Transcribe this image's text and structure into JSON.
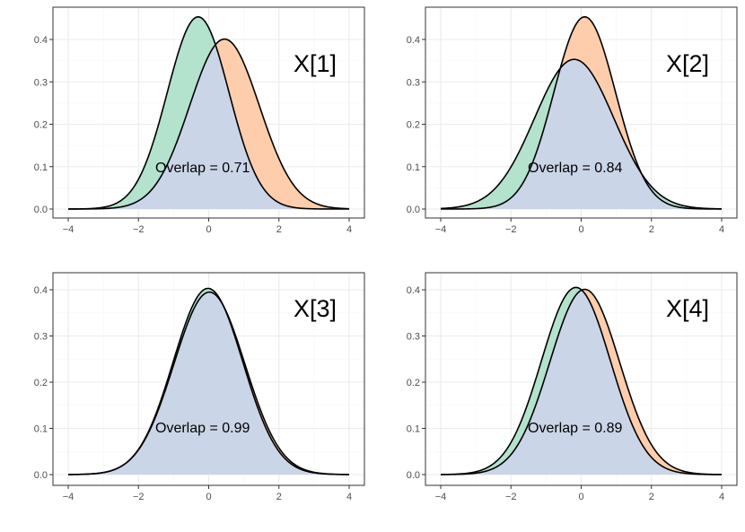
{
  "colors": {
    "group_a_fill": "#b3e2cd",
    "group_b_fill": "#fdcdac",
    "overlap_fill": "#cbd5e8",
    "curve_stroke": "#000000",
    "grid_major": "#ebebeb",
    "grid_minor": "#f5f5f5",
    "panel_border": "#333333"
  },
  "chart_data": [
    {
      "type": "area",
      "panel_label": "X[1]",
      "annotation": "Overlap = 0.71",
      "xlim": [
        -4,
        4
      ],
      "ylim": [
        0,
        0.45
      ],
      "x_ticks": [
        -4,
        -2,
        0,
        2,
        4
      ],
      "x_tick_labels": [
        "−4",
        "−2",
        "0",
        "2",
        "4"
      ],
      "y_ticks": [
        0,
        0.1,
        0.2,
        0.3,
        0.4
      ],
      "y_tick_labels": [
        "0.0",
        "0.1",
        "0.2",
        "0.3",
        "0.4"
      ],
      "series": [
        {
          "name": "density_1",
          "distribution": "normal",
          "mean": -0.3,
          "sd": 0.88,
          "peak_density": 0.452,
          "color": "#b3e2cd"
        },
        {
          "name": "density_2",
          "distribution": "normal",
          "mean": 0.45,
          "sd": 0.995,
          "peak_density": 0.4,
          "color": "#fdcdac"
        }
      ]
    },
    {
      "type": "area",
      "panel_label": "X[2]",
      "annotation": "Overlap = 0.84",
      "xlim": [
        -4,
        4
      ],
      "ylim": [
        0,
        0.45
      ],
      "x_ticks": [
        -4,
        -2,
        0,
        2,
        4
      ],
      "x_tick_labels": [
        "−4",
        "−2",
        "0",
        "2",
        "4"
      ],
      "y_ticks": [
        0,
        0.1,
        0.2,
        0.3,
        0.4
      ],
      "y_tick_labels": [
        "0.0",
        "0.1",
        "0.2",
        "0.3",
        "0.4"
      ],
      "series": [
        {
          "name": "density_1",
          "distribution": "normal",
          "mean": -0.2,
          "sd": 1.13,
          "peak_density": 0.353,
          "color": "#b3e2cd"
        },
        {
          "name": "density_2",
          "distribution": "normal",
          "mean": 0.1,
          "sd": 0.88,
          "peak_density": 0.453,
          "color": "#fdcdac"
        }
      ]
    },
    {
      "type": "area",
      "panel_label": "X[3]",
      "annotation": "Overlap = 0.99",
      "xlim": [
        -4,
        4
      ],
      "ylim": [
        0,
        0.41
      ],
      "x_ticks": [
        -4,
        -2,
        0,
        2,
        4
      ],
      "x_tick_labels": [
        "−4",
        "−2",
        "0",
        "2",
        "4"
      ],
      "y_ticks": [
        0,
        0.1,
        0.2,
        0.3,
        0.4
      ],
      "y_tick_labels": [
        "0.0",
        "0.1",
        "0.2",
        "0.3",
        "0.4"
      ],
      "series": [
        {
          "name": "density_1",
          "distribution": "normal",
          "mean": -0.02,
          "sd": 0.99,
          "peak_density": 0.403,
          "color": "#b3e2cd"
        },
        {
          "name": "density_2",
          "distribution": "normal",
          "mean": 0.02,
          "sd": 1.01,
          "peak_density": 0.395,
          "color": "#fdcdac"
        }
      ]
    },
    {
      "type": "area",
      "panel_label": "X[4]",
      "annotation": "Overlap = 0.89",
      "xlim": [
        -4,
        4
      ],
      "ylim": [
        0,
        0.41
      ],
      "x_ticks": [
        -4,
        -2,
        0,
        2,
        4
      ],
      "x_tick_labels": [
        "−4",
        "−2",
        "0",
        "2",
        "4"
      ],
      "y_ticks": [
        0,
        0.1,
        0.2,
        0.3,
        0.4
      ],
      "y_tick_labels": [
        "0.0",
        "0.1",
        "0.2",
        "0.3",
        "0.4"
      ],
      "series": [
        {
          "name": "density_1",
          "distribution": "normal",
          "mean": -0.15,
          "sd": 0.985,
          "peak_density": 0.405,
          "color": "#b3e2cd"
        },
        {
          "name": "density_2",
          "distribution": "normal",
          "mean": 0.1,
          "sd": 0.995,
          "peak_density": 0.401,
          "color": "#fdcdac"
        }
      ]
    }
  ]
}
